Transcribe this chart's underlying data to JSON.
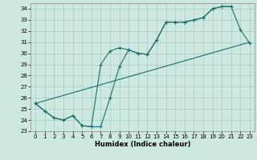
{
  "title": "",
  "xlabel": "Humidex (Indice chaleur)",
  "bg_color": "#cce8e0",
  "grid_color": "#aacfc8",
  "line_color": "#1a6e6e",
  "xlim": [
    -0.5,
    23.5
  ],
  "ylim": [
    23,
    34.5
  ],
  "yticks": [
    23,
    24,
    25,
    26,
    27,
    28,
    29,
    30,
    31,
    32,
    33,
    34
  ],
  "xticks": [
    0,
    1,
    2,
    3,
    4,
    5,
    6,
    7,
    8,
    9,
    10,
    11,
    12,
    13,
    14,
    15,
    16,
    17,
    18,
    19,
    20,
    21,
    22,
    23
  ],
  "line1_x": [
    0,
    1,
    2,
    3,
    4,
    5,
    6,
    7,
    8,
    9,
    10,
    11,
    12,
    13,
    14,
    15,
    16,
    17,
    18,
    19,
    20,
    21,
    22,
    23
  ],
  "line1_y": [
    25.5,
    24.8,
    24.2,
    24.0,
    24.4,
    23.5,
    23.4,
    23.4,
    26.0,
    28.8,
    30.3,
    30.0,
    29.9,
    31.2,
    32.8,
    32.8,
    32.8,
    33.0,
    33.2,
    34.0,
    34.2,
    34.2,
    32.1,
    30.9
  ],
  "line2_x": [
    0,
    1,
    2,
    3,
    4,
    5,
    6,
    7,
    8,
    9,
    10,
    11,
    12,
    13,
    14,
    15,
    16,
    17,
    18,
    19,
    20,
    21
  ],
  "line2_y": [
    25.5,
    24.8,
    24.2,
    24.0,
    24.4,
    23.5,
    23.4,
    29.0,
    30.2,
    30.5,
    30.3,
    30.0,
    29.9,
    31.2,
    32.8,
    32.8,
    32.8,
    33.0,
    33.2,
    34.0,
    34.2,
    34.2
  ],
  "line3_x": [
    0,
    23
  ],
  "line3_y": [
    25.5,
    31.0
  ]
}
